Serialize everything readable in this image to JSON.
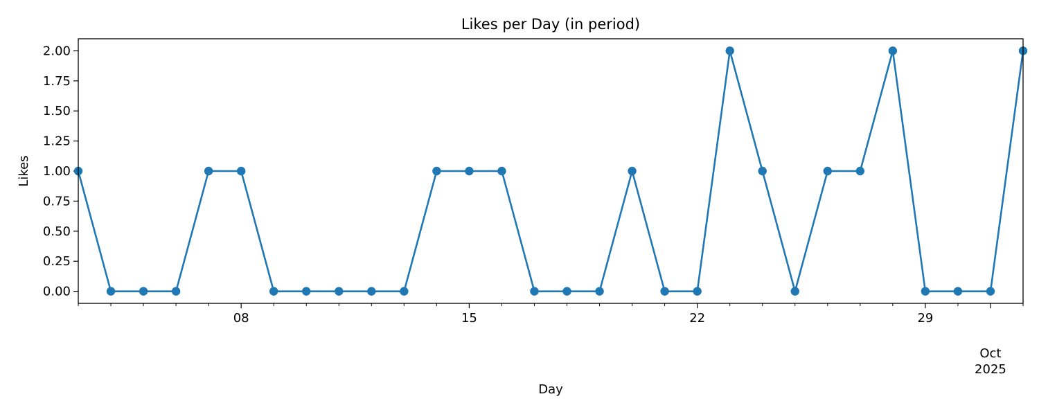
{
  "chart_data": {
    "type": "line",
    "title": "Likes per Day (in period)",
    "xlabel": "Day",
    "ylabel": "Likes",
    "x_start": "2025-09-03",
    "x_end": "2025-10-02",
    "x": [
      "2025-09-03",
      "2025-09-04",
      "2025-09-05",
      "2025-09-06",
      "2025-09-07",
      "2025-09-08",
      "2025-09-09",
      "2025-09-10",
      "2025-09-11",
      "2025-09-12",
      "2025-09-13",
      "2025-09-14",
      "2025-09-15",
      "2025-09-16",
      "2025-09-17",
      "2025-09-18",
      "2025-09-19",
      "2025-09-20",
      "2025-09-21",
      "2025-09-22",
      "2025-09-23",
      "2025-09-24",
      "2025-09-25",
      "2025-09-26",
      "2025-09-27",
      "2025-09-28",
      "2025-09-29",
      "2025-09-30",
      "2025-10-01",
      "2025-10-02"
    ],
    "series": [
      {
        "values": [
          1,
          0,
          0,
          0,
          1,
          1,
          0,
          0,
          0,
          0,
          0,
          1,
          1,
          1,
          0,
          0,
          0,
          1,
          0,
          0,
          2,
          1,
          0,
          1,
          1,
          2,
          0,
          0,
          0,
          2
        ]
      }
    ],
    "ylim": [
      -0.1,
      2.1
    ],
    "yticks": [
      0.0,
      0.25,
      0.5,
      0.75,
      1.0,
      1.25,
      1.5,
      1.75,
      2.0
    ],
    "ytick_labels": [
      "0.00",
      "0.25",
      "0.50",
      "0.75",
      "1.00",
      "1.25",
      "1.50",
      "1.75",
      "2.00"
    ],
    "xtick_major": [
      {
        "date": "2025-09-08",
        "label": "08"
      },
      {
        "date": "2025-09-15",
        "label": "15"
      },
      {
        "date": "2025-09-22",
        "label": "22"
      },
      {
        "date": "2025-09-29",
        "label": "29"
      },
      {
        "date": "2025-10-01",
        "label": "Oct",
        "label2": "2025"
      }
    ],
    "grid": false,
    "line_color": "#1f77b4"
  }
}
